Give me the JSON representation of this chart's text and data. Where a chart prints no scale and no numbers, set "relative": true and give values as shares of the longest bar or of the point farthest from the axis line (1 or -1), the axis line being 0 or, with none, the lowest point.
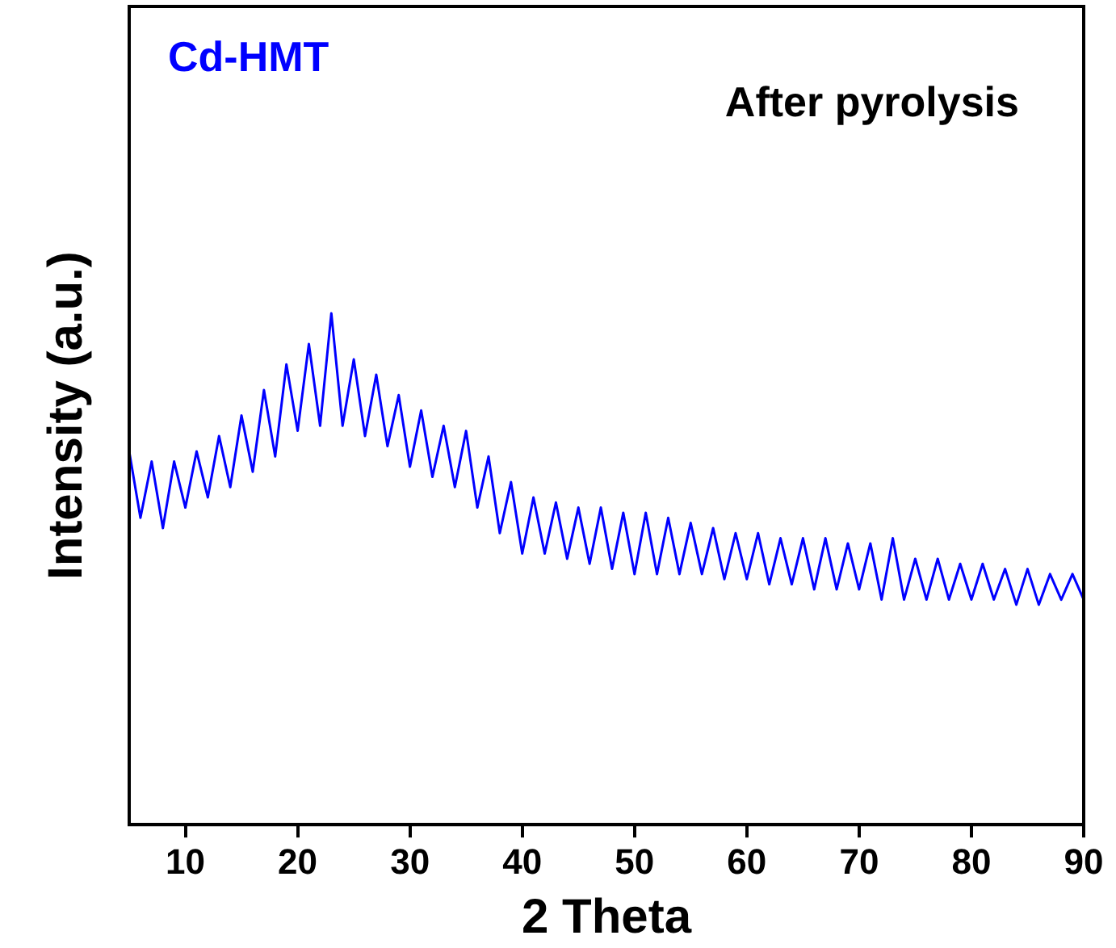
{
  "chart_data": {
    "type": "line",
    "relative": true,
    "xlabel": "2 Theta",
    "ylabel": "Intensity (a.u.)",
    "xlim": [
      5,
      90
    ],
    "xticks": [
      10,
      20,
      30,
      40,
      50,
      60,
      70,
      80,
      90
    ],
    "grid": false,
    "marker": "none",
    "annotations": [
      "After pyrolysis"
    ],
    "series": [
      {
        "name": "Cd-HMT",
        "color": "#0000ff",
        "x": [
          5,
          6,
          7,
          8,
          9,
          10,
          11,
          12,
          13,
          14,
          15,
          16,
          17,
          18,
          19,
          20,
          21,
          22,
          23,
          24,
          25,
          26,
          27,
          28,
          29,
          30,
          31,
          32,
          33,
          34,
          35,
          36,
          37,
          38,
          39,
          40,
          41,
          42,
          43,
          44,
          45,
          46,
          47,
          48,
          49,
          50,
          51,
          52,
          53,
          54,
          55,
          56,
          57,
          58,
          59,
          60,
          61,
          62,
          63,
          64,
          65,
          66,
          67,
          68,
          69,
          70,
          71,
          72,
          73,
          74,
          75,
          76,
          77,
          78,
          79,
          80,
          81,
          82,
          83,
          84,
          85,
          86,
          87,
          88,
          89,
          90
        ],
        "values": [
          0.73,
          0.6,
          0.71,
          0.58,
          0.71,
          0.62,
          0.73,
          0.64,
          0.76,
          0.66,
          0.8,
          0.69,
          0.85,
          0.72,
          0.9,
          0.77,
          0.94,
          0.78,
          1.0,
          0.78,
          0.91,
          0.76,
          0.88,
          0.74,
          0.84,
          0.7,
          0.81,
          0.68,
          0.78,
          0.66,
          0.77,
          0.62,
          0.72,
          0.57,
          0.67,
          0.53,
          0.64,
          0.53,
          0.63,
          0.52,
          0.62,
          0.51,
          0.62,
          0.5,
          0.61,
          0.49,
          0.61,
          0.49,
          0.6,
          0.49,
          0.59,
          0.49,
          0.58,
          0.48,
          0.57,
          0.48,
          0.57,
          0.47,
          0.56,
          0.47,
          0.56,
          0.46,
          0.56,
          0.46,
          0.55,
          0.46,
          0.55,
          0.44,
          0.56,
          0.44,
          0.52,
          0.44,
          0.52,
          0.44,
          0.51,
          0.44,
          0.51,
          0.44,
          0.5,
          0.43,
          0.5,
          0.43,
          0.49,
          0.44,
          0.49,
          0.44
        ]
      }
    ]
  }
}
